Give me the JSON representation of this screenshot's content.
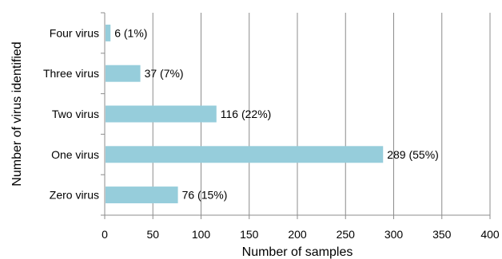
{
  "chart_data": {
    "type": "bar",
    "orientation": "horizontal",
    "categories": [
      "Four virus",
      "Three virus",
      "Two virus",
      "One virus",
      "Zero virus"
    ],
    "values": [
      6,
      37,
      116,
      289,
      76
    ],
    "data_labels": [
      "6 (1%)",
      "37 (7%)",
      "116 (22%)",
      "289 (55%)",
      "76 (15%)"
    ],
    "xlabel": "Number of samples",
    "ylabel": "Number of virus identified",
    "xlim": [
      0,
      400
    ],
    "xticks": [
      "0",
      "50",
      "100",
      "150",
      "200",
      "250",
      "300",
      "350",
      "400"
    ],
    "xtick_values": [
      0,
      50,
      100,
      150,
      200,
      250,
      300,
      350,
      400
    ],
    "grid": "vertical",
    "legend": "none",
    "bar_color": "#96cddb"
  }
}
